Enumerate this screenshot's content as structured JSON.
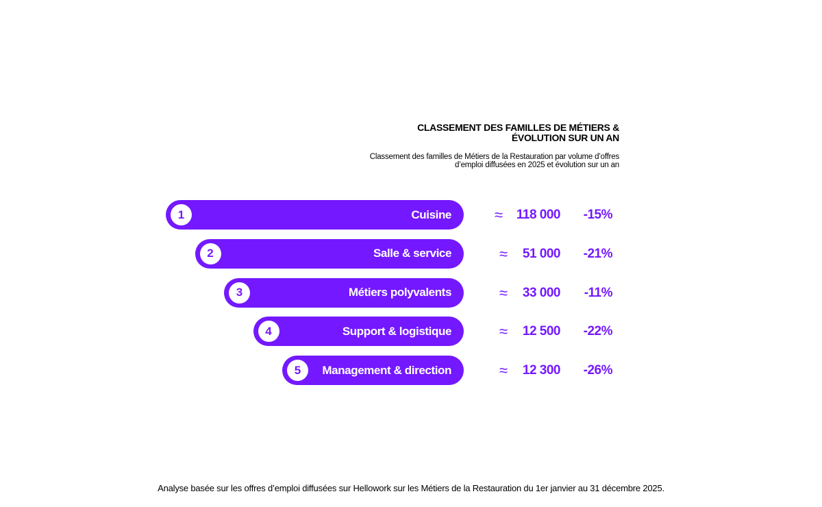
{
  "title_lines": [
    "CLASSEMENT DES FAMILLES DE MÉTIERS &",
    "ÉVOLUTION SUR UN AN"
  ],
  "subtitle_lines": [
    "Classement des familles de Métiers de la Restauration par volume d’offres",
    "d’emploi diffusées en 2025 et évolution sur un an"
  ],
  "footnote": "Analyse basée sur les offres d’emploi diffusées sur Hellowork sur les Métiers de la Restauration du 1er janvier au 31 décembre 2025.",
  "colors": {
    "accent": "#7418ff",
    "text": "#000000",
    "background": "#ffffff"
  },
  "chart_data": {
    "type": "bar",
    "orientation": "horizontal",
    "approx_symbol": "≈",
    "categories": [
      "Cuisine",
      "Salle & service",
      "Métiers polyvalents",
      "Support & logistique",
      "Management & direction"
    ],
    "ranks": [
      "1",
      "2",
      "3",
      "4",
      "5"
    ],
    "values": [
      118000,
      51000,
      33000,
      12500,
      12300
    ],
    "value_labels": [
      "118 000",
      "51 000",
      "33 000",
      "12 500",
      "12 300"
    ],
    "changes": [
      "-15%",
      "-21%",
      "-11%",
      "-22%",
      "-26%"
    ]
  }
}
